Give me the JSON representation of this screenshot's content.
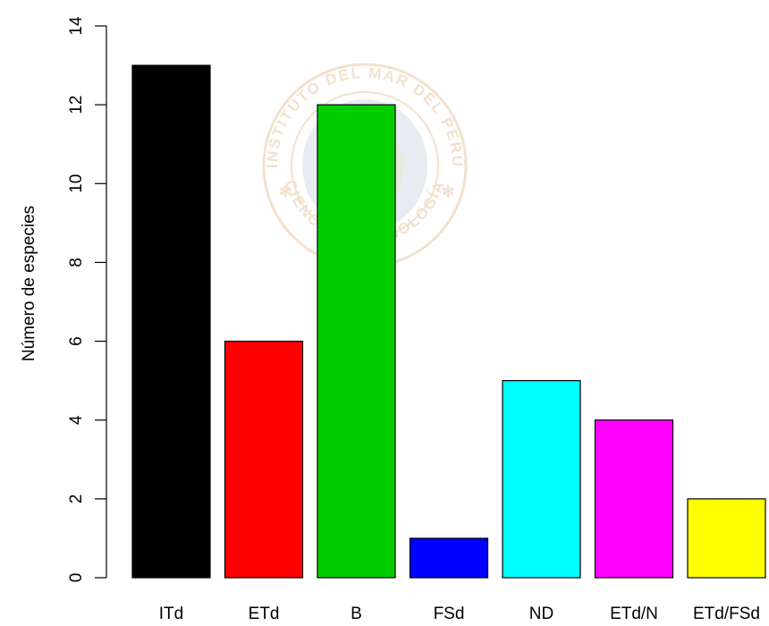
{
  "chart_data": {
    "type": "bar",
    "title": "",
    "xlabel": "",
    "ylabel": "Número de especies",
    "ylim": [
      0,
      14
    ],
    "yticks": [
      0,
      2,
      4,
      6,
      8,
      10,
      12,
      14
    ],
    "categories": [
      "ITd",
      "ETd",
      "B",
      "FSd",
      "ND",
      "ETd/N",
      "ETd/FSd"
    ],
    "values": [
      13,
      6,
      12,
      1,
      5,
      4,
      2
    ],
    "colors": [
      "#000000",
      "#ff0000",
      "#00cd00",
      "#0000ff",
      "#00ffff",
      "#ff00ff",
      "#ffff00"
    ],
    "grid": false,
    "legend": "none"
  },
  "watermark": {
    "top_text": "INSTITUTO DEL MAR DEL PERÚ",
    "bottom_text": "CIENCIA Y TECNOLOGÍA",
    "color": "#e9c9a6"
  }
}
